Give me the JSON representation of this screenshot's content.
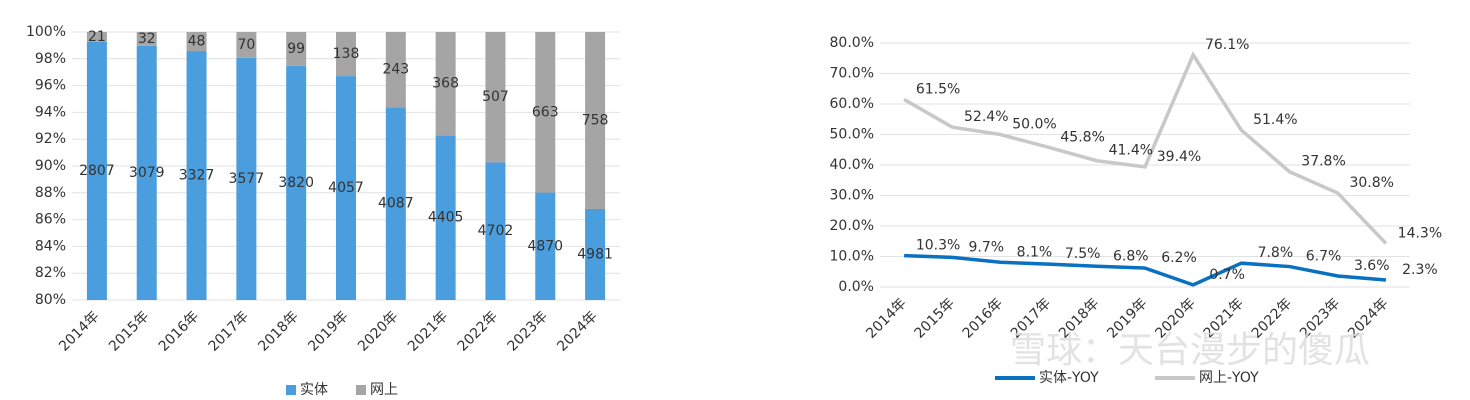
{
  "chart_data": [
    {
      "type": "bar",
      "stacking": "percent",
      "categories": [
        "2014年",
        "2015年",
        "2016年",
        "2017年",
        "2018年",
        "2019年",
        "2020年",
        "2021年",
        "2022年",
        "2023年",
        "2024年"
      ],
      "series": [
        {
          "name": "实体",
          "color": "#4a9ede",
          "values": [
            2807,
            3079,
            3327,
            3577,
            3820,
            4057,
            4087,
            4405,
            4702,
            4870,
            4981
          ]
        },
        {
          "name": "网上",
          "color": "#a5a5a5",
          "values": [
            21,
            32,
            48,
            70,
            99,
            138,
            243,
            368,
            507,
            663,
            758
          ]
        }
      ],
      "ylim": [
        80,
        100
      ],
      "yticks": [
        {
          "value": 80,
          "label": "80%"
        },
        {
          "value": 82,
          "label": "82%"
        },
        {
          "value": 84,
          "label": "84%"
        },
        {
          "value": 86,
          "label": "86%"
        },
        {
          "value": 88,
          "label": "88%"
        },
        {
          "value": 90,
          "label": "90%"
        },
        {
          "value": 92,
          "label": "92%"
        },
        {
          "value": 94,
          "label": "94%"
        },
        {
          "value": 96,
          "label": "96%"
        },
        {
          "value": 98,
          "label": "98%"
        },
        {
          "value": 100,
          "label": "100%"
        }
      ],
      "grid": true,
      "legend": "bottom"
    },
    {
      "type": "line",
      "categories": [
        "2014年",
        "2015年",
        "2016年",
        "2017年",
        "2018年",
        "2019年",
        "2020年",
        "2021年",
        "2022年",
        "2023年",
        "2024年"
      ],
      "series": [
        {
          "name": "实体-YOY",
          "color": "#0a70c0",
          "values": [
            10.3,
            9.7,
            8.1,
            7.5,
            6.8,
            6.2,
            0.7,
            7.8,
            6.7,
            3.6,
            2.3
          ],
          "value_labels": [
            "10.3%",
            "9.7%",
            "8.1%",
            "7.5%",
            "6.8%",
            "6.2%",
            "0.7%",
            "7.8%",
            "6.7%",
            "3.6%",
            "2.3%"
          ]
        },
        {
          "name": "网上-YOY",
          "color": "#c8c8c8",
          "values": [
            61.5,
            52.4,
            50.0,
            45.8,
            41.4,
            39.4,
            76.1,
            51.4,
            37.8,
            30.8,
            14.3
          ],
          "value_labels": [
            "61.5%",
            "52.4%",
            "50.0%",
            "45.8%",
            "41.4%",
            "39.4%",
            "76.1%",
            "51.4%",
            "37.8%",
            "30.8%",
            "14.3%"
          ]
        }
      ],
      "ylim": [
        0,
        80
      ],
      "yticks": [
        {
          "value": 0,
          "label": "0.0%"
        },
        {
          "value": 10,
          "label": "10.0%"
        },
        {
          "value": 20,
          "label": "20.0%"
        },
        {
          "value": 30,
          "label": "30.0%"
        },
        {
          "value": 40,
          "label": "40.0%"
        },
        {
          "value": 50,
          "label": "50.0%"
        },
        {
          "value": 60,
          "label": "60.0%"
        },
        {
          "value": 70,
          "label": "70.0%"
        },
        {
          "value": 80,
          "label": "80.0%"
        }
      ],
      "grid": true,
      "legend": "bottom",
      "watermark": "雪球：天台漫步的傻瓜"
    }
  ]
}
